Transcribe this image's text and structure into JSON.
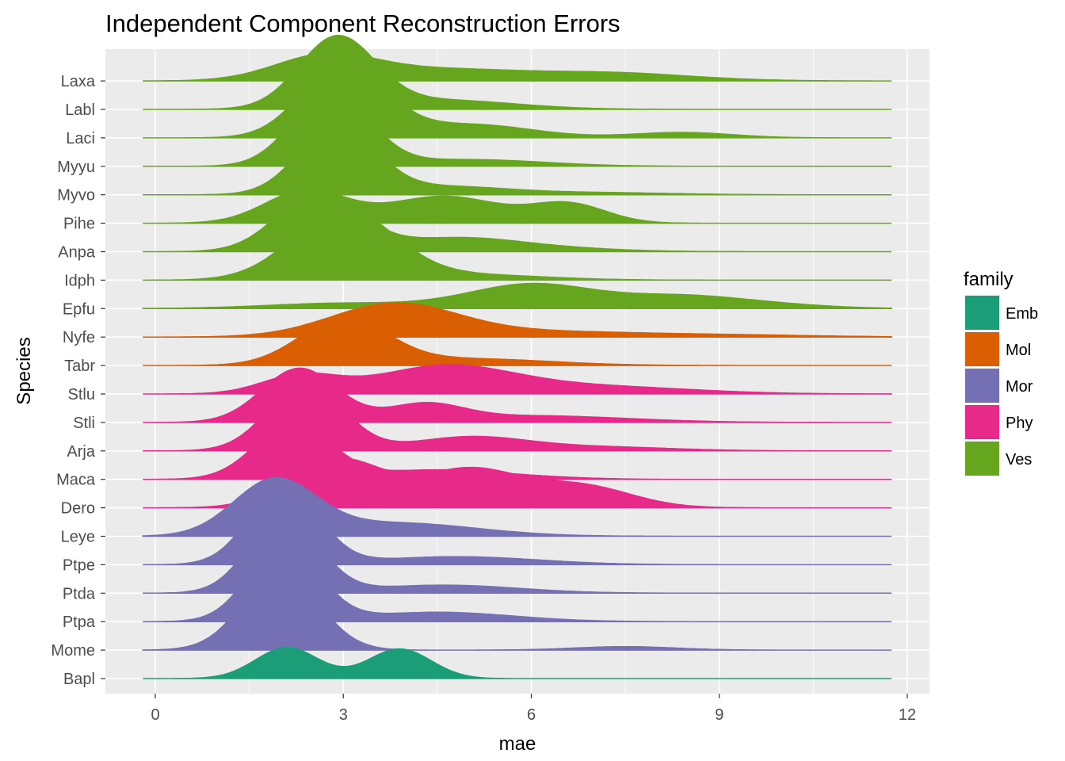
{
  "chart_data": {
    "type": "ridgeline",
    "title": "Independent Component Reconstruction Errors",
    "xlabel": "mae",
    "ylabel": "Species",
    "xlim": [
      -0.8,
      12.3
    ],
    "xticks": [
      0,
      3,
      6,
      9,
      12
    ],
    "x_range_drawn": [
      -0.2,
      11.75
    ],
    "grid": true,
    "legend": {
      "title": "family",
      "position": "right",
      "entries": [
        {
          "name": "Emb",
          "color": "#1b9e77"
        },
        {
          "name": "Mol",
          "color": "#d95f02"
        },
        {
          "name": "Mor",
          "color": "#7570b3"
        },
        {
          "name": "Phy",
          "color": "#e7298a"
        },
        {
          "name": "Ves",
          "color": "#66a61e"
        }
      ]
    },
    "series": [
      {
        "species": "Bapl",
        "family": "Emb",
        "peaks": [
          [
            2.1,
            0.5,
            1.15
          ],
          [
            3.9,
            0.5,
            1.1
          ]
        ]
      },
      {
        "species": "Mome",
        "family": "Mor",
        "peaks": [
          [
            2.0,
            0.6,
            2.9
          ],
          [
            7.5,
            0.8,
            0.13
          ]
        ]
      },
      {
        "species": "Ptpa",
        "family": "Mor",
        "peaks": [
          [
            2.05,
            0.55,
            2.9
          ],
          [
            4.5,
            1.2,
            0.35
          ]
        ]
      },
      {
        "species": "Ptda",
        "family": "Mor",
        "peaks": [
          [
            2.05,
            0.55,
            2.9
          ],
          [
            4.6,
            1.2,
            0.3
          ]
        ]
      },
      {
        "species": "Ptpe",
        "family": "Mor",
        "peaks": [
          [
            2.05,
            0.55,
            2.9
          ],
          [
            4.8,
            1.3,
            0.3
          ]
        ]
      },
      {
        "species": "Leye",
        "family": "Mor",
        "peaks": [
          [
            1.9,
            0.65,
            2.0
          ],
          [
            3.8,
            1.3,
            0.5
          ]
        ]
      },
      {
        "species": "Dero",
        "family": "Phy",
        "peaks": [
          [
            2.9,
            0.75,
            1.8
          ],
          [
            5.0,
            0.8,
            1.4
          ],
          [
            6.8,
            0.8,
            0.8
          ]
        ]
      },
      {
        "species": "Maca",
        "family": "Phy",
        "peaks": [
          [
            2.2,
            0.6,
            2.1
          ],
          [
            4.5,
            1.0,
            0.35
          ],
          [
            6.2,
            0.8,
            0.05
          ]
        ]
      },
      {
        "species": "Arja",
        "family": "Phy",
        "peaks": [
          [
            2.4,
            0.6,
            2.5
          ],
          [
            5.0,
            0.9,
            0.5
          ],
          [
            7.0,
            1.2,
            0.15
          ]
        ]
      },
      {
        "species": "Stli",
        "family": "Phy",
        "peaks": [
          [
            2.3,
            0.6,
            2.0
          ],
          [
            4.3,
            0.6,
            0.6
          ],
          [
            6.0,
            1.5,
            0.25
          ]
        ]
      },
      {
        "species": "Stlu",
        "family": "Phy",
        "peaks": [
          [
            2.3,
            0.6,
            0.65
          ],
          [
            4.6,
            1.1,
            1.0
          ],
          [
            7.0,
            1.5,
            0.28
          ]
        ]
      },
      {
        "species": "Tabr",
        "family": "Mol",
        "peaks": [
          [
            3.0,
            0.7,
            1.7
          ],
          [
            5.0,
            1.3,
            0.25
          ]
        ]
      },
      {
        "species": "Nyfe",
        "family": "Mol",
        "peaks": [
          [
            3.8,
            1.0,
            1.2
          ],
          [
            6.0,
            1.5,
            0.2
          ],
          [
            9.0,
            1.5,
            0.08
          ]
        ]
      },
      {
        "species": "Epfu",
        "family": "Ves",
        "peaks": [
          [
            3.0,
            1.2,
            0.2
          ],
          [
            6.0,
            1.0,
            0.9
          ],
          [
            8.4,
            1.0,
            0.45
          ],
          [
            10.0,
            0.9,
            0.1
          ]
        ]
      },
      {
        "species": "Idph",
        "family": "Ves",
        "peaks": [
          [
            3.0,
            0.8,
            2.6
          ],
          [
            5.0,
            1.2,
            0.2
          ]
        ]
      },
      {
        "species": "Anpa",
        "family": "Ves",
        "peaks": [
          [
            2.6,
            0.65,
            2.2
          ],
          [
            4.8,
            1.0,
            0.5
          ],
          [
            6.5,
            1.0,
            0.1
          ]
        ]
      },
      {
        "species": "Pihe",
        "family": "Ves",
        "peaks": [
          [
            2.4,
            0.65,
            1.2
          ],
          [
            4.6,
            0.9,
            1.0
          ],
          [
            6.6,
            0.6,
            0.7
          ]
        ]
      },
      {
        "species": "Myvo",
        "family": "Ves",
        "peaks": [
          [
            2.9,
            0.6,
            2.6
          ],
          [
            4.6,
            1.0,
            0.3
          ],
          [
            7.0,
            1.2,
            0.08
          ]
        ]
      },
      {
        "species": "Myyu",
        "family": "Ves",
        "peaks": [
          [
            2.8,
            0.6,
            2.8
          ],
          [
            5.0,
            1.2,
            0.25
          ]
        ]
      },
      {
        "species": "Laci",
        "family": "Ves",
        "peaks": [
          [
            3.0,
            0.65,
            2.8
          ],
          [
            5.0,
            1.0,
            0.5
          ],
          [
            8.4,
            0.8,
            0.2
          ]
        ]
      },
      {
        "species": "Labl",
        "family": "Ves",
        "peaks": [
          [
            2.9,
            0.6,
            2.6
          ],
          [
            4.5,
            1.2,
            0.35
          ]
        ]
      },
      {
        "species": "Laxa",
        "family": "Ves",
        "peaks": [
          [
            2.7,
            0.8,
            0.9
          ],
          [
            4.5,
            1.2,
            0.4
          ],
          [
            7.2,
            1.3,
            0.3
          ]
        ]
      }
    ]
  }
}
